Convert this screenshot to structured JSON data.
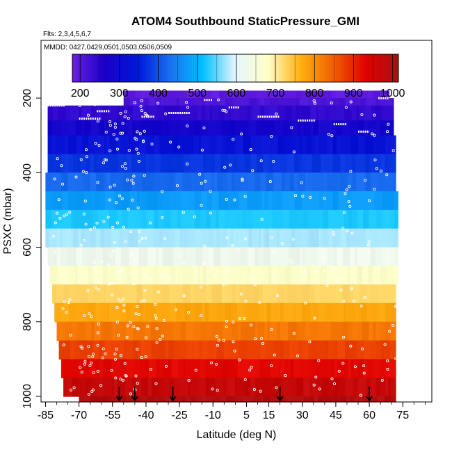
{
  "chart_data": {
    "type": "heatmap",
    "title": "ATOM4 Southbound StaticPressure_GMI",
    "subtitle": "Flts: 2,3,4,5,6,7",
    "legend_note": "MMDD: 0427,0429,0501,0503,0506,0509",
    "xlabel": "Latitude (deg N)",
    "ylabel": "PSXC (mbar)",
    "xlim": [
      -87,
      88
    ],
    "ylim": [
      1015,
      45
    ],
    "x_ticks": [
      -85,
      -70,
      -55,
      -40,
      -25,
      -10,
      5,
      15,
      30,
      45,
      60,
      75
    ],
    "x_tick_labels": [
      "-85",
      "-70",
      "-55",
      "-40",
      "-25",
      "-10",
      "5",
      "15",
      "30",
      "45",
      "60",
      "75"
    ],
    "y_ticks": [
      200,
      400,
      600,
      800,
      1000
    ],
    "y_tick_labels": [
      "200",
      "400",
      "600",
      "800",
      "1000"
    ],
    "colorbar": {
      "range": [
        180,
        1015
      ],
      "ticks": [
        200,
        300,
        400,
        500,
        600,
        700,
        800,
        900,
        1000
      ],
      "tick_labels": [
        "200",
        "300",
        "400",
        "500",
        "600",
        "700",
        "800",
        "900",
        "1000"
      ],
      "colors": [
        "#6a20e0",
        "#1a00c8",
        "#0018d8",
        "#1a70f0",
        "#00c0ff",
        "#e6f6ff",
        "#ffffc6",
        "#ffb010",
        "#f06000",
        "#e00000",
        "#aa1010"
      ]
    },
    "bands": [
      {
        "p_top": 180,
        "p_bottom": 200,
        "lat_min": -50,
        "lat_max": 69
      },
      {
        "p_top": 200,
        "p_bottom": 220,
        "lat_min": -50,
        "lat_max": 71
      },
      {
        "p_top": 220,
        "p_bottom": 260,
        "lat_min": -84,
        "lat_max": 71
      },
      {
        "p_top": 260,
        "p_bottom": 300,
        "lat_min": -84,
        "lat_max": 71
      },
      {
        "p_top": 300,
        "p_bottom": 350,
        "lat_min": -84,
        "lat_max": 72
      },
      {
        "p_top": 350,
        "p_bottom": 400,
        "lat_min": -84,
        "lat_max": 72
      },
      {
        "p_top": 400,
        "p_bottom": 450,
        "lat_min": -85,
        "lat_max": 72
      },
      {
        "p_top": 450,
        "p_bottom": 500,
        "lat_min": -85,
        "lat_max": 73
      },
      {
        "p_top": 500,
        "p_bottom": 550,
        "lat_min": -85,
        "lat_max": 73
      },
      {
        "p_top": 550,
        "p_bottom": 600,
        "lat_min": -85,
        "lat_max": 73
      },
      {
        "p_top": 600,
        "p_bottom": 650,
        "lat_min": -84,
        "lat_max": 73
      },
      {
        "p_top": 650,
        "p_bottom": 700,
        "lat_min": -83,
        "lat_max": 73
      },
      {
        "p_top": 700,
        "p_bottom": 750,
        "lat_min": -82,
        "lat_max": 72
      },
      {
        "p_top": 750,
        "p_bottom": 800,
        "lat_min": -81,
        "lat_max": 72
      },
      {
        "p_top": 800,
        "p_bottom": 850,
        "lat_min": -80,
        "lat_max": 72
      },
      {
        "p_top": 850,
        "p_bottom": 900,
        "lat_min": -79,
        "lat_max": 72
      },
      {
        "p_top": 900,
        "p_bottom": 950,
        "lat_min": -78,
        "lat_max": 72
      },
      {
        "p_top": 950,
        "p_bottom": 1000,
        "lat_min": -77,
        "lat_max": 72
      },
      {
        "p_top": 1000,
        "p_bottom": 1015,
        "lat_min": -70,
        "lat_max": 72
      }
    ],
    "profile_markers_lat": [
      -52,
      -45,
      -28,
      20,
      60
    ]
  }
}
